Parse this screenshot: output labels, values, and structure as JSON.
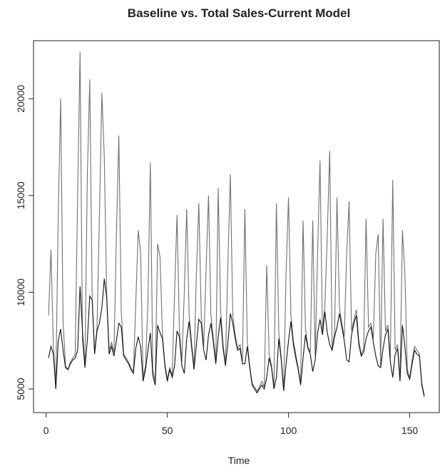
{
  "chart_data": {
    "type": "line",
    "title": "Baseline vs. Total Sales-Current Model",
    "xlabel": "Time",
    "x": [
      1,
      2,
      3,
      4,
      5,
      6,
      7,
      8,
      9,
      10,
      11,
      12,
      13,
      14,
      15,
      16,
      17,
      18,
      19,
      20,
      21,
      22,
      23,
      24,
      25,
      26,
      27,
      28,
      29,
      30,
      31,
      32,
      33,
      34,
      35,
      36,
      37,
      38,
      39,
      40,
      41,
      42,
      43,
      44,
      45,
      46,
      47,
      48,
      49,
      50,
      51,
      52,
      53,
      54,
      55,
      56,
      57,
      58,
      59,
      60,
      61,
      62,
      63,
      64,
      65,
      66,
      67,
      68,
      69,
      70,
      71,
      72,
      73,
      74,
      75,
      76,
      77,
      78,
      79,
      80,
      81,
      82,
      83,
      84,
      85,
      86,
      87,
      88,
      89,
      90,
      91,
      92,
      93,
      94,
      95,
      96,
      97,
      98,
      99,
      100,
      101,
      102,
      103,
      104,
      105,
      106,
      107,
      108,
      109,
      110,
      111,
      112,
      113,
      114,
      115,
      116,
      117,
      118,
      119,
      120,
      121,
      122,
      123,
      124,
      125,
      126,
      127,
      128,
      129,
      130,
      131,
      132,
      133,
      134,
      135,
      136,
      137,
      138,
      139,
      140,
      141,
      142,
      143,
      144,
      145,
      146,
      147,
      148,
      149,
      150,
      151,
      152,
      153,
      154,
      155,
      156
    ],
    "series": [
      {
        "color": "#707070",
        "values": [
          8800,
          12200,
          7200,
          5200,
          14000,
          20000,
          8500,
          6200,
          6000,
          6400,
          6600,
          6800,
          15000,
          22400,
          7500,
          6200,
          16000,
          21000,
          9700,
          6900,
          8200,
          14000,
          20300,
          17000,
          9800,
          7000,
          7400,
          6900,
          13000,
          18100,
          9000,
          6800,
          6600,
          6400,
          6100,
          5900,
          9500,
          13200,
          12000,
          5600,
          6200,
          9500,
          16700,
          6000,
          5400,
          12500,
          11800,
          7800,
          6300,
          5500,
          6100,
          5700,
          10000,
          14000,
          8000,
          6400,
          10000,
          14300,
          8800,
          7400,
          6100,
          11000,
          14600,
          8800,
          7200,
          11200,
          15000,
          8800,
          7600,
          6400,
          15400,
          9000,
          7300,
          6300,
          11500,
          16100,
          8800,
          7800,
          7100,
          7300,
          6400,
          14300,
          7400,
          6200,
          5300,
          5100,
          4900,
          5100,
          5400,
          5100,
          11400,
          6800,
          6200,
          5100,
          14600,
          7900,
          6600,
          5000,
          11000,
          14900,
          8800,
          7500,
          6800,
          6100,
          5300,
          13700,
          8100,
          7200,
          6900,
          13700,
          6700,
          12000,
          16800,
          8000,
          9300,
          13000,
          17300,
          7100,
          7900,
          14900,
          9200,
          8400,
          7700,
          12000,
          14700,
          8000,
          8600,
          9100,
          7500,
          6800,
          7100,
          13800,
          8200,
          8400,
          7600,
          12000,
          13000,
          6200,
          13800,
          8000,
          8300,
          6600,
          15800,
          7000,
          7300,
          5500,
          13200,
          11000,
          6000,
          5600,
          6500,
          7200,
          7000,
          6800,
          5300,
          4700
        ]
      },
      {
        "color": "#111111",
        "values": [
          6600,
          7200,
          6800,
          5000,
          7500,
          8100,
          7000,
          6100,
          6000,
          6300,
          6500,
          6600,
          7000,
          10300,
          8000,
          6100,
          7500,
          9800,
          9600,
          6800,
          8000,
          8400,
          9200,
          10700,
          9700,
          6800,
          7200,
          6700,
          7500,
          8400,
          8200,
          6700,
          6500,
          6300,
          6000,
          5800,
          7100,
          7700,
          7200,
          5400,
          6000,
          7000,
          7900,
          5700,
          5200,
          8300,
          7900,
          7600,
          6200,
          5400,
          6000,
          5600,
          6200,
          8000,
          7700,
          6200,
          5800,
          7600,
          8500,
          7200,
          6000,
          7300,
          8600,
          8400,
          7000,
          6500,
          7800,
          8400,
          7400,
          6300,
          7700,
          8700,
          7100,
          6200,
          7400,
          8900,
          8400,
          7600,
          7000,
          7100,
          6300,
          6300,
          7200,
          6100,
          5200,
          5000,
          4800,
          5000,
          5200,
          5000,
          5600,
          6600,
          6100,
          5000,
          5600,
          7600,
          6500,
          4900,
          6300,
          7500,
          8500,
          7300,
          6600,
          6000,
          5200,
          6600,
          7800,
          7100,
          6800,
          5900,
          6500,
          7900,
          8600,
          7800,
          9000,
          7900,
          7300,
          7000,
          7700,
          8200,
          8900,
          8200,
          7500,
          6500,
          6400,
          7800,
          8400,
          8800,
          7300,
          6700,
          6900,
          7600,
          8000,
          8200,
          7400,
          6700,
          6200,
          6100,
          7100,
          7800,
          8100,
          6400,
          5600,
          6800,
          7100,
          5400,
          8300,
          7200,
          5800,
          5500,
          6300,
          7000,
          6800,
          6700,
          5200,
          4600
        ]
      }
    ],
    "xlim": [
      -5.2,
      162.2
    ],
    "ylim": [
      3780,
      23000
    ],
    "xticks": [
      0,
      50,
      100,
      150
    ],
    "yticks": [
      5000,
      10000,
      15000,
      20000
    ]
  }
}
